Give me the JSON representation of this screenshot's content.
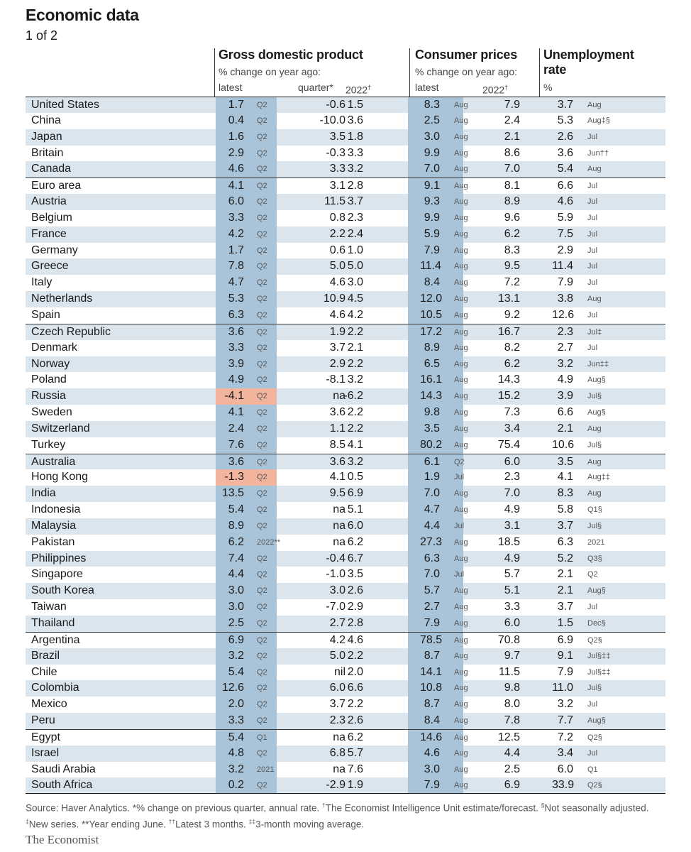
{
  "header": {
    "title": "Economic data",
    "subtitle": "1 of 2"
  },
  "groups": {
    "gdp": {
      "title": "Gross domestic product",
      "sub": "% change on year ago:",
      "col_latest": "latest",
      "col_quarter": "quarter*",
      "col_2022": "2022",
      "col_2022_mark": "†"
    },
    "cpi": {
      "title": "Consumer prices",
      "sub": "% change on year ago:",
      "col_latest": "latest",
      "col_2022": "2022",
      "col_2022_mark": "†"
    },
    "unemp": {
      "title_line1": "Unemployment",
      "title_line2": "rate",
      "unit": "%"
    }
  },
  "rows": [
    {
      "country": "United States",
      "gdp_latest": "1.7",
      "gdp_period": "Q2",
      "gdp_quarter": "-0.6",
      "gdp_2022": "1.5",
      "cpi_latest": "8.3",
      "cpi_period": "Aug",
      "cpi_2022": "7.9",
      "unemp": "3.7",
      "unemp_period": "Aug"
    },
    {
      "country": "China",
      "gdp_latest": "0.4",
      "gdp_period": "Q2",
      "gdp_quarter": "-10.0",
      "gdp_2022": "3.6",
      "cpi_latest": "2.5",
      "cpi_period": "Aug",
      "cpi_2022": "2.4",
      "unemp": "5.3",
      "unemp_period": "Aug‡§"
    },
    {
      "country": "Japan",
      "gdp_latest": "1.6",
      "gdp_period": "Q2",
      "gdp_quarter": "3.5",
      "gdp_2022": "1.8",
      "cpi_latest": "3.0",
      "cpi_period": "Aug",
      "cpi_2022": "2.1",
      "unemp": "2.6",
      "unemp_period": "Jul"
    },
    {
      "country": "Britain",
      "gdp_latest": "2.9",
      "gdp_period": "Q2",
      "gdp_quarter": "-0.3",
      "gdp_2022": "3.3",
      "cpi_latest": "9.9",
      "cpi_period": "Aug",
      "cpi_2022": "8.6",
      "unemp": "3.6",
      "unemp_period": "Jun††"
    },
    {
      "country": "Canada",
      "gdp_latest": "4.6",
      "gdp_period": "Q2",
      "gdp_quarter": "3.3",
      "gdp_2022": "3.2",
      "cpi_latest": "7.0",
      "cpi_period": "Aug",
      "cpi_2022": "7.0",
      "unemp": "5.4",
      "unemp_period": "Aug"
    },
    {
      "country": "Euro area",
      "gdp_latest": "4.1",
      "gdp_period": "Q2",
      "gdp_quarter": "3.1",
      "gdp_2022": "2.8",
      "cpi_latest": "9.1",
      "cpi_period": "Aug",
      "cpi_2022": "8.1",
      "unemp": "6.6",
      "unemp_period": "Jul"
    },
    {
      "country": "Austria",
      "gdp_latest": "6.0",
      "gdp_period": "Q2",
      "gdp_quarter": "11.5",
      "gdp_2022": "3.7",
      "cpi_latest": "9.3",
      "cpi_period": "Aug",
      "cpi_2022": "8.9",
      "unemp": "4.6",
      "unemp_period": "Jul"
    },
    {
      "country": "Belgium",
      "gdp_latest": "3.3",
      "gdp_period": "Q2",
      "gdp_quarter": "0.8",
      "gdp_2022": "2.3",
      "cpi_latest": "9.9",
      "cpi_period": "Aug",
      "cpi_2022": "9.6",
      "unemp": "5.9",
      "unemp_period": "Jul"
    },
    {
      "country": "France",
      "gdp_latest": "4.2",
      "gdp_period": "Q2",
      "gdp_quarter": "2.2",
      "gdp_2022": "2.4",
      "cpi_latest": "5.9",
      "cpi_period": "Aug",
      "cpi_2022": "6.2",
      "unemp": "7.5",
      "unemp_period": "Jul"
    },
    {
      "country": "Germany",
      "gdp_latest": "1.7",
      "gdp_period": "Q2",
      "gdp_quarter": "0.6",
      "gdp_2022": "1.0",
      "cpi_latest": "7.9",
      "cpi_period": "Aug",
      "cpi_2022": "8.3",
      "unemp": "2.9",
      "unemp_period": "Jul"
    },
    {
      "country": "Greece",
      "gdp_latest": "7.8",
      "gdp_period": "Q2",
      "gdp_quarter": "5.0",
      "gdp_2022": "5.0",
      "cpi_latest": "11.4",
      "cpi_period": "Aug",
      "cpi_2022": "9.5",
      "unemp": "11.4",
      "unemp_period": "Jul"
    },
    {
      "country": "Italy",
      "gdp_latest": "4.7",
      "gdp_period": "Q2",
      "gdp_quarter": "4.6",
      "gdp_2022": "3.0",
      "cpi_latest": "8.4",
      "cpi_period": "Aug",
      "cpi_2022": "7.2",
      "unemp": "7.9",
      "unemp_period": "Jul"
    },
    {
      "country": "Netherlands",
      "gdp_latest": "5.3",
      "gdp_period": "Q2",
      "gdp_quarter": "10.9",
      "gdp_2022": "4.5",
      "cpi_latest": "12.0",
      "cpi_period": "Aug",
      "cpi_2022": "13.1",
      "unemp": "3.8",
      "unemp_period": "Aug"
    },
    {
      "country": "Spain",
      "gdp_latest": "6.3",
      "gdp_period": "Q2",
      "gdp_quarter": "4.6",
      "gdp_2022": "4.2",
      "cpi_latest": "10.5",
      "cpi_period": "Aug",
      "cpi_2022": "9.2",
      "unemp": "12.6",
      "unemp_period": "Jul"
    },
    {
      "country": "Czech Republic",
      "gdp_latest": "3.6",
      "gdp_period": "Q2",
      "gdp_quarter": "1.9",
      "gdp_2022": "2.2",
      "cpi_latest": "17.2",
      "cpi_period": "Aug",
      "cpi_2022": "16.7",
      "unemp": "2.3",
      "unemp_period": "Jul‡"
    },
    {
      "country": "Denmark",
      "gdp_latest": "3.3",
      "gdp_period": "Q2",
      "gdp_quarter": "3.7",
      "gdp_2022": "2.1",
      "cpi_latest": "8.9",
      "cpi_period": "Aug",
      "cpi_2022": "8.2",
      "unemp": "2.7",
      "unemp_period": "Jul"
    },
    {
      "country": "Norway",
      "gdp_latest": "3.9",
      "gdp_period": "Q2",
      "gdp_quarter": "2.9",
      "gdp_2022": "2.2",
      "cpi_latest": "6.5",
      "cpi_period": "Aug",
      "cpi_2022": "6.2",
      "unemp": "3.2",
      "unemp_period": "Jun‡‡"
    },
    {
      "country": "Poland",
      "gdp_latest": "4.9",
      "gdp_period": "Q2",
      "gdp_quarter": "-8.1",
      "gdp_2022": "3.2",
      "cpi_latest": "16.1",
      "cpi_period": "Aug",
      "cpi_2022": "14.3",
      "unemp": "4.9",
      "unemp_period": "Aug§"
    },
    {
      "country": "Russia",
      "gdp_latest": "-4.1",
      "gdp_period": "Q2",
      "gdp_quarter": "na",
      "gdp_2022": "-6.2",
      "cpi_latest": "14.3",
      "cpi_period": "Aug",
      "cpi_2022": "15.2",
      "unemp": "3.9",
      "unemp_period": "Jul§"
    },
    {
      "country": "Sweden",
      "gdp_latest": "4.1",
      "gdp_period": "Q2",
      "gdp_quarter": "3.6",
      "gdp_2022": "2.2",
      "cpi_latest": "9.8",
      "cpi_period": "Aug",
      "cpi_2022": "7.3",
      "unemp": "6.6",
      "unemp_period": "Aug§"
    },
    {
      "country": "Switzerland",
      "gdp_latest": "2.4",
      "gdp_period": "Q2",
      "gdp_quarter": "1.1",
      "gdp_2022": "2.2",
      "cpi_latest": "3.5",
      "cpi_period": "Aug",
      "cpi_2022": "3.4",
      "unemp": "2.1",
      "unemp_period": "Aug"
    },
    {
      "country": "Turkey",
      "gdp_latest": "7.6",
      "gdp_period": "Q2",
      "gdp_quarter": "8.5",
      "gdp_2022": "4.1",
      "cpi_latest": "80.2",
      "cpi_period": "Aug",
      "cpi_2022": "75.4",
      "unemp": "10.6",
      "unemp_period": "Jul§"
    },
    {
      "country": "Australia",
      "gdp_latest": "3.6",
      "gdp_period": "Q2",
      "gdp_quarter": "3.6",
      "gdp_2022": "3.2",
      "cpi_latest": "6.1",
      "cpi_period": "Q2",
      "cpi_2022": "6.0",
      "unemp": "3.5",
      "unemp_period": "Aug"
    },
    {
      "country": "Hong Kong",
      "gdp_latest": "-1.3",
      "gdp_period": "Q2",
      "gdp_quarter": "4.1",
      "gdp_2022": "0.5",
      "cpi_latest": "1.9",
      "cpi_period": "Jul",
      "cpi_2022": "2.3",
      "unemp": "4.1",
      "unemp_period": "Aug‡‡"
    },
    {
      "country": "India",
      "gdp_latest": "13.5",
      "gdp_period": "Q2",
      "gdp_quarter": "9.5",
      "gdp_2022": "6.9",
      "cpi_latest": "7.0",
      "cpi_period": "Aug",
      "cpi_2022": "7.0",
      "unemp": "8.3",
      "unemp_period": "Aug"
    },
    {
      "country": "Indonesia",
      "gdp_latest": "5.4",
      "gdp_period": "Q2",
      "gdp_quarter": "na",
      "gdp_2022": "5.1",
      "cpi_latest": "4.7",
      "cpi_period": "Aug",
      "cpi_2022": "4.9",
      "unemp": "5.8",
      "unemp_period": "Q1§"
    },
    {
      "country": "Malaysia",
      "gdp_latest": "8.9",
      "gdp_period": "Q2",
      "gdp_quarter": "na",
      "gdp_2022": "6.0",
      "cpi_latest": "4.4",
      "cpi_period": "Jul",
      "cpi_2022": "3.1",
      "unemp": "3.7",
      "unemp_period": "Jul§"
    },
    {
      "country": "Pakistan",
      "gdp_latest": "6.2",
      "gdp_period": "2022**",
      "gdp_quarter": "na",
      "gdp_2022": "6.2",
      "cpi_latest": "27.3",
      "cpi_period": "Aug",
      "cpi_2022": "18.5",
      "unemp": "6.3",
      "unemp_period": "2021"
    },
    {
      "country": "Philippines",
      "gdp_latest": "7.4",
      "gdp_period": "Q2",
      "gdp_quarter": "-0.4",
      "gdp_2022": "6.7",
      "cpi_latest": "6.3",
      "cpi_period": "Aug",
      "cpi_2022": "4.9",
      "unemp": "5.2",
      "unemp_period": "Q3§"
    },
    {
      "country": "Singapore",
      "gdp_latest": "4.4",
      "gdp_period": "Q2",
      "gdp_quarter": "-1.0",
      "gdp_2022": "3.5",
      "cpi_latest": "7.0",
      "cpi_period": "Jul",
      "cpi_2022": "5.7",
      "unemp": "2.1",
      "unemp_period": "Q2"
    },
    {
      "country": "South Korea",
      "gdp_latest": "3.0",
      "gdp_period": "Q2",
      "gdp_quarter": "3.0",
      "gdp_2022": "2.6",
      "cpi_latest": "5.7",
      "cpi_period": "Aug",
      "cpi_2022": "5.1",
      "unemp": "2.1",
      "unemp_period": "Aug§"
    },
    {
      "country": "Taiwan",
      "gdp_latest": "3.0",
      "gdp_period": "Q2",
      "gdp_quarter": "-7.0",
      "gdp_2022": "2.9",
      "cpi_latest": "2.7",
      "cpi_period": "Aug",
      "cpi_2022": "3.3",
      "unemp": "3.7",
      "unemp_period": "Jul"
    },
    {
      "country": "Thailand",
      "gdp_latest": "2.5",
      "gdp_period": "Q2",
      "gdp_quarter": "2.7",
      "gdp_2022": "2.8",
      "cpi_latest": "7.9",
      "cpi_period": "Aug",
      "cpi_2022": "6.0",
      "unemp": "1.5",
      "unemp_period": "Dec§"
    },
    {
      "country": "Argentina",
      "gdp_latest": "6.9",
      "gdp_period": "Q2",
      "gdp_quarter": "4.2",
      "gdp_2022": "4.6",
      "cpi_latest": "78.5",
      "cpi_period": "Aug",
      "cpi_2022": "70.8",
      "unemp": "6.9",
      "unemp_period": "Q2§"
    },
    {
      "country": "Brazil",
      "gdp_latest": "3.2",
      "gdp_period": "Q2",
      "gdp_quarter": "5.0",
      "gdp_2022": "2.2",
      "cpi_latest": "8.7",
      "cpi_period": "Aug",
      "cpi_2022": "9.7",
      "unemp": "9.1",
      "unemp_period": "Jul§‡‡"
    },
    {
      "country": "Chile",
      "gdp_latest": "5.4",
      "gdp_period": "Q2",
      "gdp_quarter": "nil",
      "gdp_2022": "2.0",
      "cpi_latest": "14.1",
      "cpi_period": "Aug",
      "cpi_2022": "11.5",
      "unemp": "7.9",
      "unemp_period": "Jul§‡‡"
    },
    {
      "country": "Colombia",
      "gdp_latest": "12.6",
      "gdp_period": "Q2",
      "gdp_quarter": "6.0",
      "gdp_2022": "6.6",
      "cpi_latest": "10.8",
      "cpi_period": "Aug",
      "cpi_2022": "9.8",
      "unemp": "11.0",
      "unemp_period": "Jul§"
    },
    {
      "country": "Mexico",
      "gdp_latest": "2.0",
      "gdp_period": "Q2",
      "gdp_quarter": "3.7",
      "gdp_2022": "2.2",
      "cpi_latest": "8.7",
      "cpi_period": "Aug",
      "cpi_2022": "8.0",
      "unemp": "3.2",
      "unemp_period": "Jul"
    },
    {
      "country": "Peru",
      "gdp_latest": "3.3",
      "gdp_period": "Q2",
      "gdp_quarter": "2.3",
      "gdp_2022": "2.6",
      "cpi_latest": "8.4",
      "cpi_period": "Aug",
      "cpi_2022": "7.8",
      "unemp": "7.7",
      "unemp_period": "Aug§"
    },
    {
      "country": "Egypt",
      "gdp_latest": "5.4",
      "gdp_period": "Q1",
      "gdp_quarter": "na",
      "gdp_2022": "6.2",
      "cpi_latest": "14.6",
      "cpi_period": "Aug",
      "cpi_2022": "12.5",
      "unemp": "7.2",
      "unemp_period": "Q2§"
    },
    {
      "country": "Israel",
      "gdp_latest": "4.8",
      "gdp_period": "Q2",
      "gdp_quarter": "6.8",
      "gdp_2022": "5.7",
      "cpi_latest": "4.6",
      "cpi_period": "Aug",
      "cpi_2022": "4.4",
      "unemp": "3.4",
      "unemp_period": "Jul"
    },
    {
      "country": "Saudi Arabia",
      "gdp_latest": "3.2",
      "gdp_period": "2021",
      "gdp_quarter": "na",
      "gdp_2022": "7.6",
      "cpi_latest": "3.0",
      "cpi_period": "Aug",
      "cpi_2022": "2.5",
      "unemp": "6.0",
      "unemp_period": "Q1"
    },
    {
      "country": "South Africa",
      "gdp_latest": "0.2",
      "gdp_period": "Q2",
      "gdp_quarter": "-2.9",
      "gdp_2022": "1.9",
      "cpi_latest": "7.9",
      "cpi_period": "Aug",
      "cpi_2022": "6.9",
      "unemp": "33.9",
      "unemp_period": "Q2§"
    }
  ],
  "group_starts": [
    0,
    5,
    14,
    22,
    33,
    39
  ],
  "footnote": "Source: Haver Analytics. *% change on previous quarter, annual rate. †The Economist Intelligence Unit estimate/forecast. §Not seasonally adjusted. ‡New series. **Year ending June. ††Latest 3 months. ‡‡3-month moving average.",
  "brand": "The Economist",
  "colors": {
    "row_shade": "#dbe5ee",
    "latest_box": "#a9c4d9",
    "negative_box": "#f2b49d"
  }
}
